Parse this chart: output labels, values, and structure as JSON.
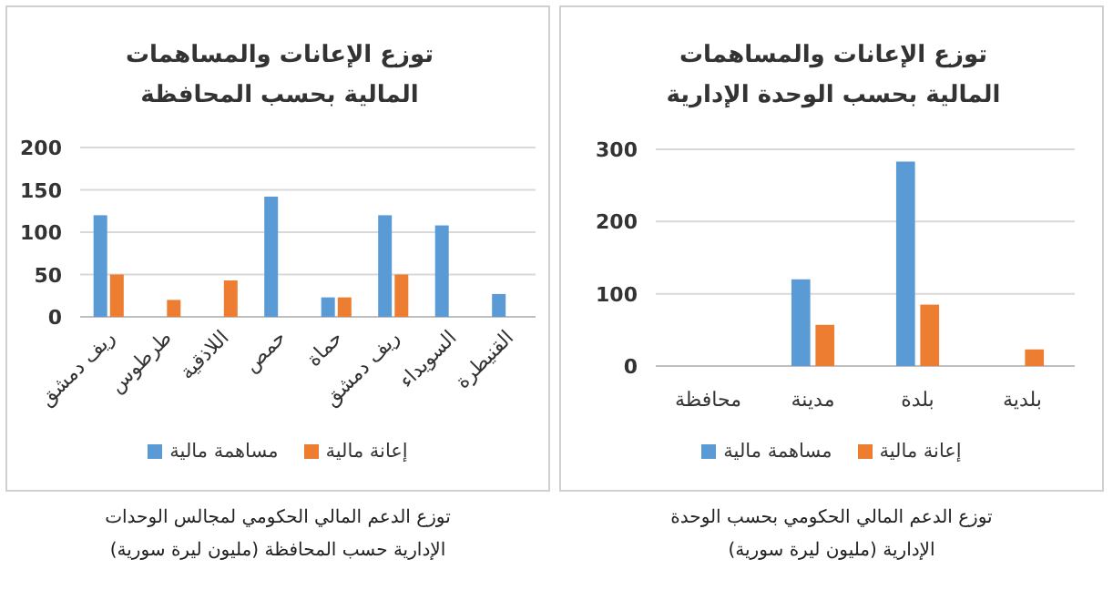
{
  "chart_data": [
    {
      "type": "bar",
      "title": "توزع الإعانات والمساهمات المالية بحسب المحافظة",
      "categories": [
        "ريف دمشق",
        "طرطوس",
        "اللاذقية",
        "حمص",
        "حماة",
        "ريف دمشق",
        "السويداء",
        "القنيطرة"
      ],
      "series": [
        {
          "name": "مساهمة مالية",
          "color": "#5b9bd5",
          "values": [
            120,
            null,
            null,
            142,
            23,
            120,
            108,
            27
          ]
        },
        {
          "name": "إعانة مالية",
          "color": "#ed7d31",
          "values": [
            50,
            20,
            43,
            null,
            23,
            50,
            null,
            null
          ]
        }
      ],
      "ylim": [
        0,
        200
      ],
      "yticks": [
        0,
        50,
        100,
        150,
        200
      ],
      "grid": "y",
      "legend": "bottom",
      "annotations": [
        "توزع الدعم المالي الحكومي لمجالس الوحدات الإدارية حسب المحافظة (مليون ليرة سورية)"
      ]
    },
    {
      "type": "bar",
      "title": "توزع الإعانات والمساهمات المالية بحسب الوحدة الإدارية",
      "categories": [
        "محافظة",
        "مدينة",
        "بلدة",
        "بلدية"
      ],
      "series": [
        {
          "name": "مساهمة مالية",
          "color": "#5b9bd5",
          "values": [
            null,
            120,
            283,
            null
          ]
        },
        {
          "name": "إعانة مالية",
          "color": "#ed7d31",
          "values": [
            null,
            57,
            85,
            23
          ]
        }
      ],
      "ylim": [
        0,
        300
      ],
      "yticks": [
        0,
        100,
        200,
        300
      ],
      "grid": "y",
      "legend": "bottom",
      "annotations": [
        "توزع الدعم المالي الحكومي بحسب الوحدة الإدارية (مليون ليرة سورية)"
      ]
    }
  ]
}
